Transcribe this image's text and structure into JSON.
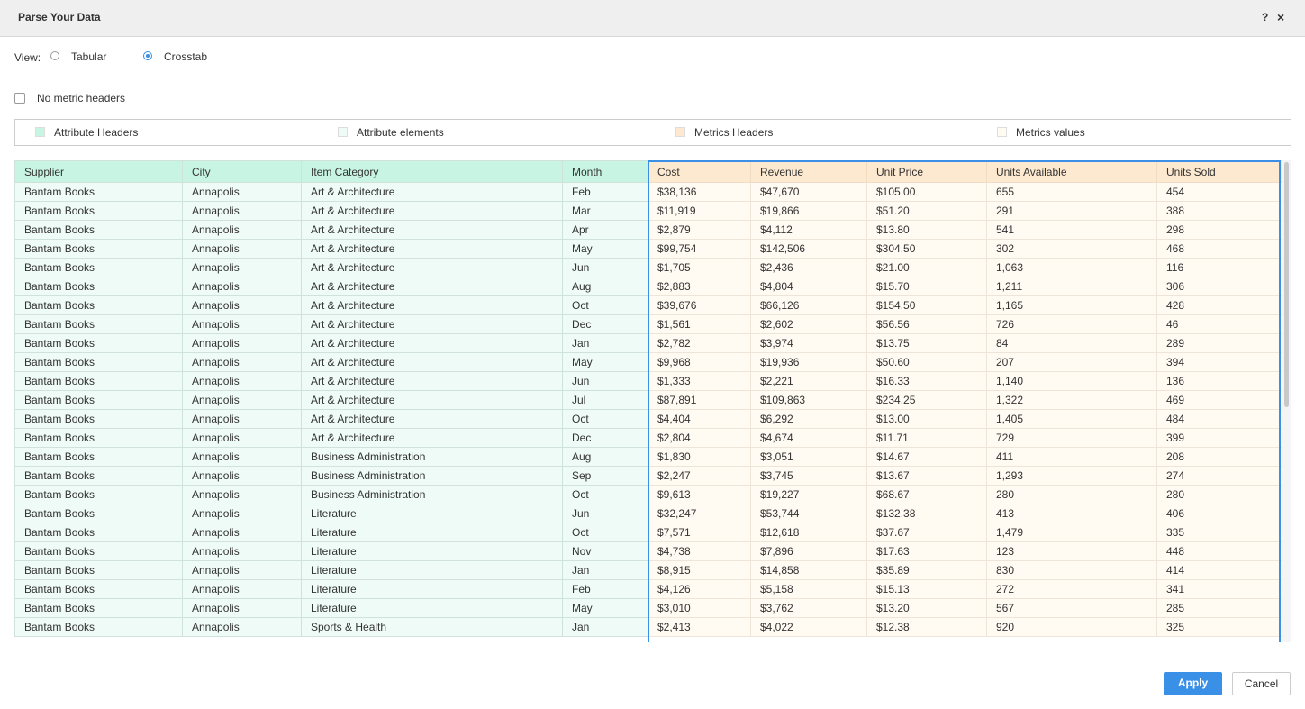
{
  "dialog": {
    "title": "Parse Your Data",
    "help": "?",
    "close": "×"
  },
  "view": {
    "label": "View:",
    "options": [
      "Tabular",
      "Crosstab"
    ],
    "selected": 1
  },
  "checkbox": {
    "label": "No metric headers"
  },
  "legend": [
    "Attribute Headers",
    "Attribute elements",
    "Metrics Headers",
    "Metrics values"
  ],
  "table": {
    "headers": [
      "Supplier",
      "City",
      "Item Category",
      "Month",
      "Cost",
      "Revenue",
      "Unit Price",
      "Units Available",
      "Units Sold"
    ],
    "rows": [
      [
        "Bantam Books",
        "Annapolis",
        "Art & Architecture",
        "Feb",
        "$38,136",
        "$47,670",
        "$105.00",
        "655",
        "454"
      ],
      [
        "Bantam Books",
        "Annapolis",
        "Art & Architecture",
        "Mar",
        "$11,919",
        "$19,866",
        "$51.20",
        "291",
        "388"
      ],
      [
        "Bantam Books",
        "Annapolis",
        "Art & Architecture",
        "Apr",
        "$2,879",
        "$4,112",
        "$13.80",
        "541",
        "298"
      ],
      [
        "Bantam Books",
        "Annapolis",
        "Art & Architecture",
        "May",
        "$99,754",
        "$142,506",
        "$304.50",
        "302",
        "468"
      ],
      [
        "Bantam Books",
        "Annapolis",
        "Art & Architecture",
        "Jun",
        "$1,705",
        "$2,436",
        "$21.00",
        "1,063",
        "116"
      ],
      [
        "Bantam Books",
        "Annapolis",
        "Art & Architecture",
        "Aug",
        "$2,883",
        "$4,804",
        "$15.70",
        "1,211",
        "306"
      ],
      [
        "Bantam Books",
        "Annapolis",
        "Art & Architecture",
        "Oct",
        "$39,676",
        "$66,126",
        "$154.50",
        "1,165",
        "428"
      ],
      [
        "Bantam Books",
        "Annapolis",
        "Art & Architecture",
        "Dec",
        "$1,561",
        "$2,602",
        "$56.56",
        "726",
        "46"
      ],
      [
        "Bantam Books",
        "Annapolis",
        "Art & Architecture",
        "Jan",
        "$2,782",
        "$3,974",
        "$13.75",
        "84",
        "289"
      ],
      [
        "Bantam Books",
        "Annapolis",
        "Art & Architecture",
        "May",
        "$9,968",
        "$19,936",
        "$50.60",
        "207",
        "394"
      ],
      [
        "Bantam Books",
        "Annapolis",
        "Art & Architecture",
        "Jun",
        "$1,333",
        "$2,221",
        "$16.33",
        "1,140",
        "136"
      ],
      [
        "Bantam Books",
        "Annapolis",
        "Art & Architecture",
        "Jul",
        "$87,891",
        "$109,863",
        "$234.25",
        "1,322",
        "469"
      ],
      [
        "Bantam Books",
        "Annapolis",
        "Art & Architecture",
        "Oct",
        "$4,404",
        "$6,292",
        "$13.00",
        "1,405",
        "484"
      ],
      [
        "Bantam Books",
        "Annapolis",
        "Art & Architecture",
        "Dec",
        "$2,804",
        "$4,674",
        "$11.71",
        "729",
        "399"
      ],
      [
        "Bantam Books",
        "Annapolis",
        "Business Administration",
        "Aug",
        "$1,830",
        "$3,051",
        "$14.67",
        "411",
        "208"
      ],
      [
        "Bantam Books",
        "Annapolis",
        "Business Administration",
        "Sep",
        "$2,247",
        "$3,745",
        "$13.67",
        "1,293",
        "274"
      ],
      [
        "Bantam Books",
        "Annapolis",
        "Business Administration",
        "Oct",
        "$9,613",
        "$19,227",
        "$68.67",
        "280",
        "280"
      ],
      [
        "Bantam Books",
        "Annapolis",
        "Literature",
        "Jun",
        "$32,247",
        "$53,744",
        "$132.38",
        "413",
        "406"
      ],
      [
        "Bantam Books",
        "Annapolis",
        "Literature",
        "Oct",
        "$7,571",
        "$12,618",
        "$37.67",
        "1,479",
        "335"
      ],
      [
        "Bantam Books",
        "Annapolis",
        "Literature",
        "Nov",
        "$4,738",
        "$7,896",
        "$17.63",
        "123",
        "448"
      ],
      [
        "Bantam Books",
        "Annapolis",
        "Literature",
        "Jan",
        "$8,915",
        "$14,858",
        "$35.89",
        "830",
        "414"
      ],
      [
        "Bantam Books",
        "Annapolis",
        "Literature",
        "Feb",
        "$4,126",
        "$5,158",
        "$15.13",
        "272",
        "341"
      ],
      [
        "Bantam Books",
        "Annapolis",
        "Literature",
        "May",
        "$3,010",
        "$3,762",
        "$13.20",
        "567",
        "285"
      ],
      [
        "Bantam Books",
        "Annapolis",
        "Sports & Health",
        "Jan",
        "$2,413",
        "$4,022",
        "$12.38",
        "920",
        "325"
      ]
    ]
  },
  "buttons": {
    "apply": "Apply",
    "cancel": "Cancel"
  }
}
